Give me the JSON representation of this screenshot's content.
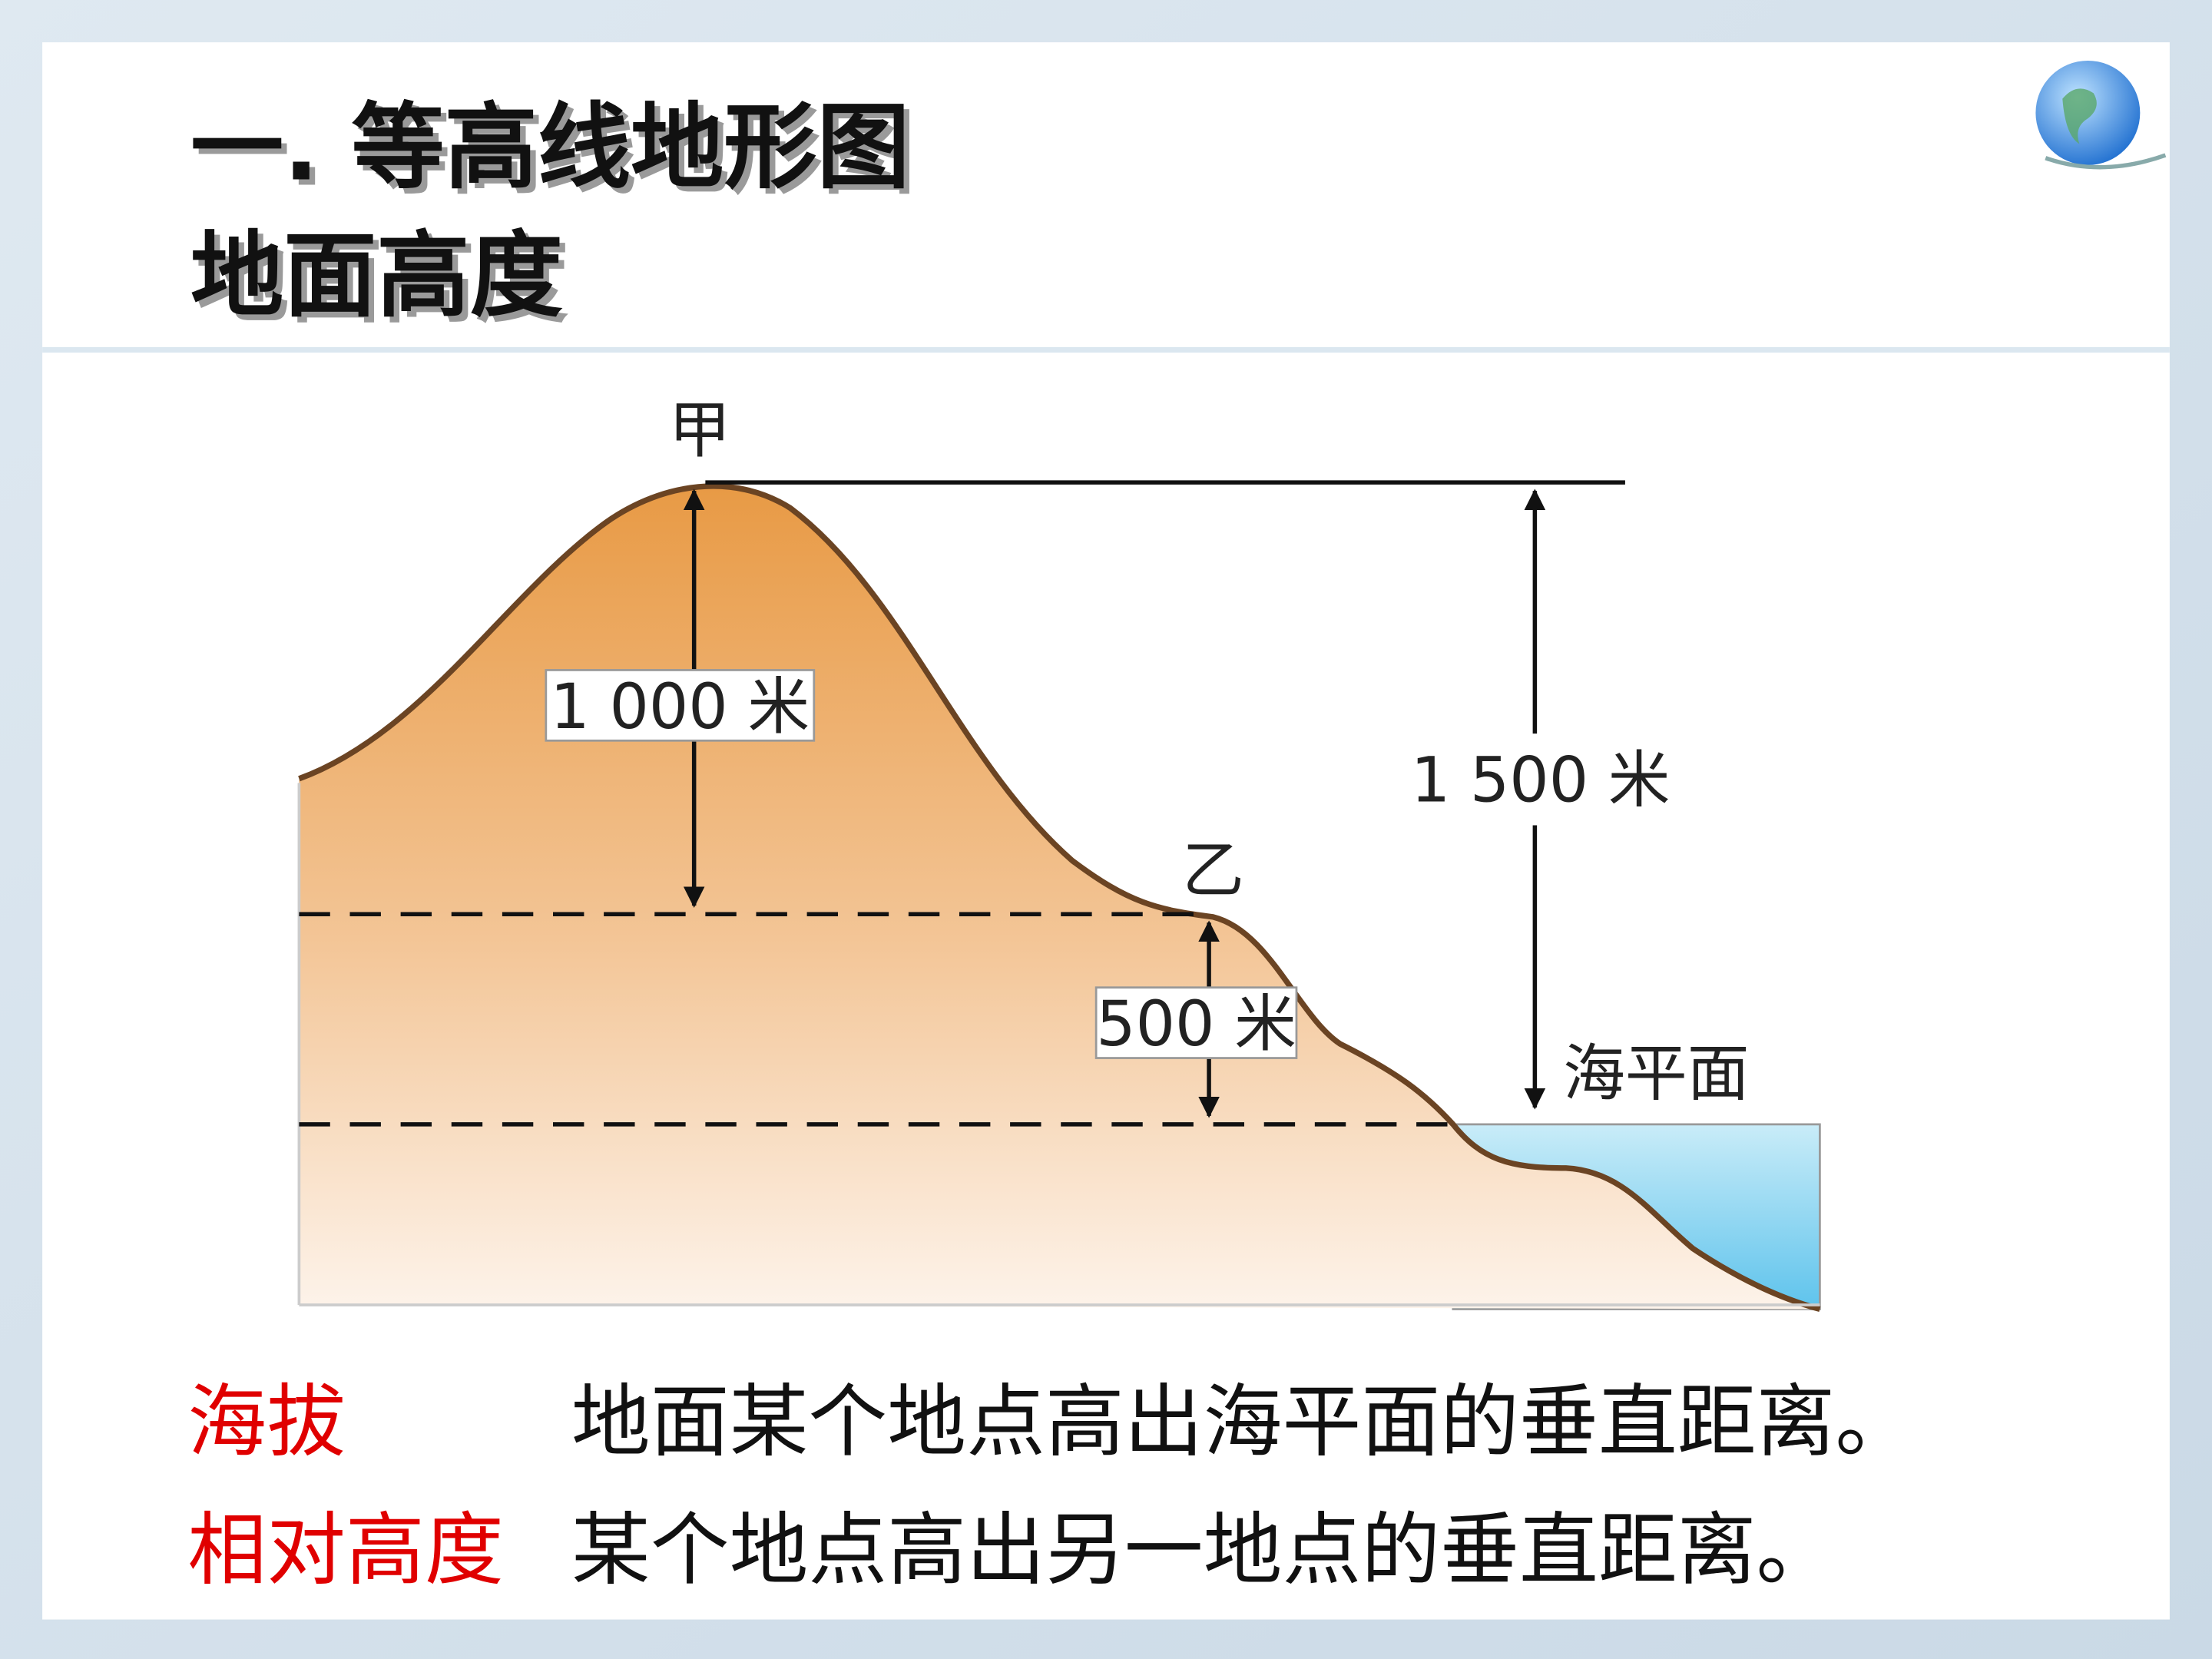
{
  "header": {
    "title": "一. 等高线地形图",
    "subtitle": "地面高度"
  },
  "diagram": {
    "labels": {
      "peak": "甲",
      "saddle": "乙",
      "sea_level": "海平面",
      "relative_height_1": "1 000 米",
      "relative_height_2": "500 米",
      "absolute_height": "1 500 米"
    }
  },
  "definitions": [
    {
      "term": "海拔",
      "text": "地面某个地点高出海平面的垂直距离。"
    },
    {
      "term": "相对高度",
      "text": "某个地点高出另一地点的垂直距离。"
    }
  ]
}
